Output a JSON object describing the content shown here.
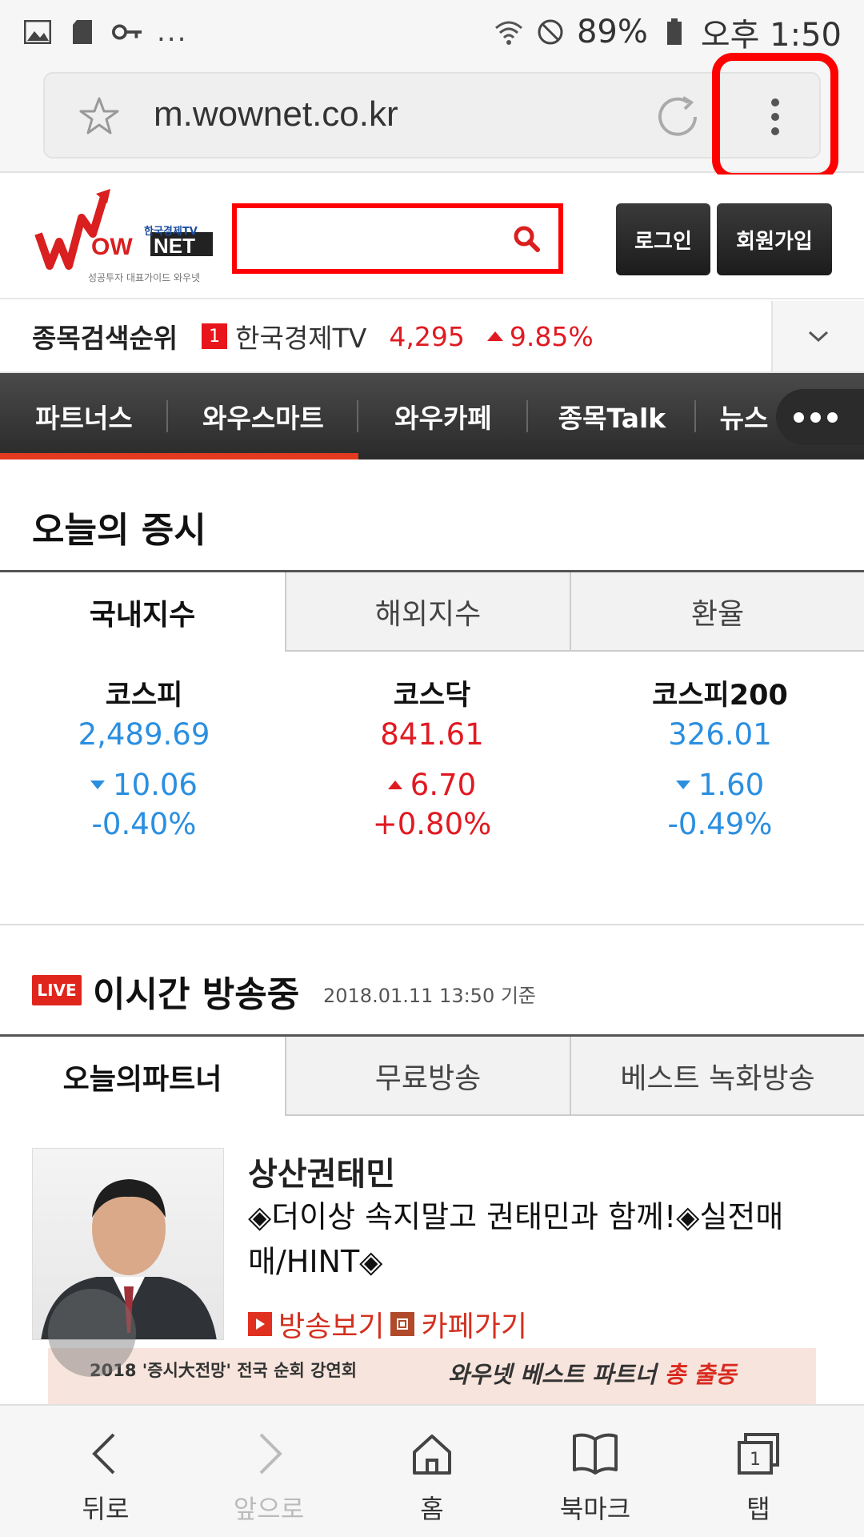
{
  "status_bar": {
    "dots": "...",
    "battery": "89%",
    "time": "오후 1:50"
  },
  "browser": {
    "url": "m.wownet.co.kr"
  },
  "header": {
    "logo_tv": "한국경제TV",
    "logo_main": "WOWNET",
    "logo_sub": "성공투자 대표가이드 와우넷",
    "login_label": "로그인",
    "join_label": "회원가입"
  },
  "ticker": {
    "title": "종목검색순위",
    "rank": "1",
    "name": "한국경제TV",
    "price": "4,295",
    "change": "9.85%"
  },
  "nav": {
    "items": [
      "파트너스",
      "와우스마트",
      "와우카페",
      "종목Talk",
      "뉴스"
    ]
  },
  "market": {
    "title": "오늘의 증시",
    "tabs": [
      "국내지수",
      "해외지수",
      "환율"
    ],
    "indices": [
      {
        "name": "코스피",
        "value": "2,489.69",
        "change": "10.06",
        "percent": "-0.40%",
        "direction": "down"
      },
      {
        "name": "코스닥",
        "value": "841.61",
        "change": "6.70",
        "percent": "+0.80%",
        "direction": "up"
      },
      {
        "name": "코스피200",
        "value": "326.01",
        "change": "1.60",
        "percent": "-0.49%",
        "direction": "down"
      }
    ]
  },
  "live": {
    "badge": "LIVE",
    "title": "이시간 방송중",
    "timestamp": "2018.01.11 13:50 기준",
    "tabs": [
      "오늘의파트너",
      "무료방송",
      "베스트 녹화방송"
    ],
    "partner": {
      "name": "상산권태민",
      "description": "◈더이상 속지말고 권태민과 함께!◈실전매매/HINT◈",
      "watch_label": "방송보기",
      "cafe_label": "카페가기"
    }
  },
  "banner": {
    "left_text": "2018 '증시大전망' 전국 순회 강연회",
    "right_text": "와우넷 베스트 파트너",
    "right_highlight": "총 출동"
  },
  "bottom_bar": {
    "back": "뒤로",
    "forward": "앞으로",
    "home": "홈",
    "bookmark": "북마크",
    "tabs": "탭",
    "tab_count": "1"
  },
  "colors": {
    "accent_red": "#e01a22",
    "index_blue": "#2b8fe0",
    "highlight_box": "#ff0000"
  }
}
